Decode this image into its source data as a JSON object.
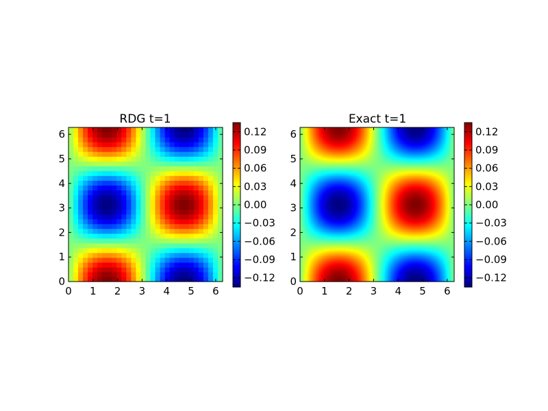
{
  "chart_data": [
    {
      "type": "heatmap",
      "title": "RDG t=1",
      "style": "pixelated",
      "cells": 32,
      "function": "0.135 * sin(x) * cos(y)",
      "xlim": [
        0,
        6.283
      ],
      "ylim": [
        0,
        6.283
      ],
      "xticks": [
        "0",
        "1",
        "2",
        "3",
        "4",
        "5",
        "6"
      ],
      "yticks": [
        "0",
        "1",
        "2",
        "3",
        "4",
        "5",
        "6"
      ],
      "zrange": [
        -0.135,
        0.135
      ],
      "colormap": "jet",
      "colorbar": {
        "ticks": [
          0.12,
          0.09,
          0.06,
          0.03,
          0.0,
          -0.03,
          -0.06,
          -0.09,
          -0.12
        ],
        "tick_labels": [
          "0.12",
          "0.09",
          "0.06",
          "0.03",
          "0.00",
          "−0.03",
          "−0.06",
          "−0.09",
          "−0.12"
        ]
      }
    },
    {
      "type": "heatmap",
      "title": "Exact t=1",
      "style": "smooth",
      "cells": 96,
      "function": "0.135 * sin(x) * cos(y)",
      "xlim": [
        0,
        6.283
      ],
      "ylim": [
        0,
        6.283
      ],
      "xticks": [
        "0",
        "1",
        "2",
        "3",
        "4",
        "5",
        "6"
      ],
      "yticks": [
        "0",
        "1",
        "2",
        "3",
        "4",
        "5",
        "6"
      ],
      "zrange": [
        -0.135,
        0.135
      ],
      "colormap": "jet",
      "colorbar": {
        "ticks": [
          0.12,
          0.09,
          0.06,
          0.03,
          0.0,
          -0.03,
          -0.06,
          -0.09,
          -0.12
        ],
        "tick_labels": [
          "0.12",
          "0.09",
          "0.06",
          "0.03",
          "0.00",
          "−0.03",
          "−0.06",
          "−0.09",
          "−0.12"
        ]
      }
    }
  ]
}
